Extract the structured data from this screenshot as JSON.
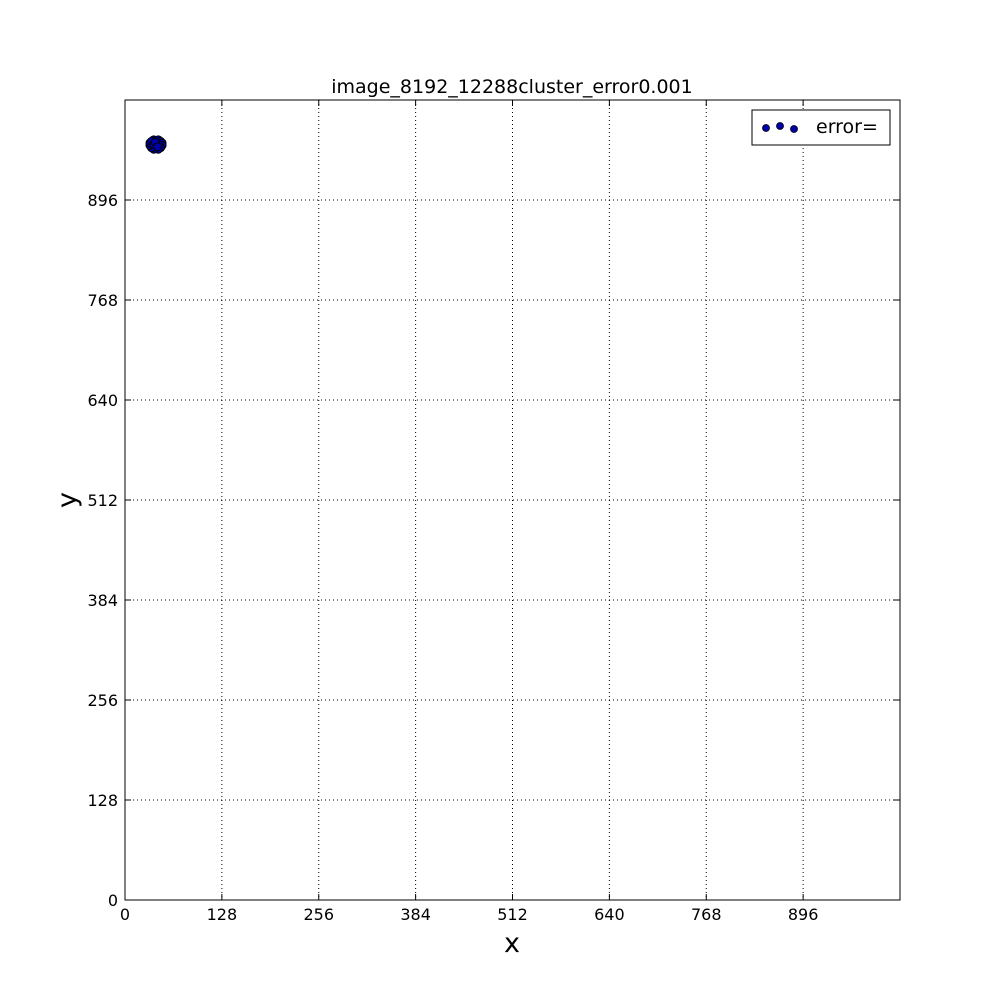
{
  "chart_data": {
    "type": "scatter",
    "title": "image_8192_12288cluster_error0.001",
    "xlabel": "x",
    "ylabel": "y",
    "xlim": [
      0,
      1024
    ],
    "ylim": [
      0,
      1024
    ],
    "xticks": [
      0,
      128,
      256,
      384,
      512,
      640,
      768,
      896
    ],
    "yticks": [
      0,
      128,
      256,
      384,
      512,
      640,
      768,
      896
    ],
    "grid": true,
    "legend_position": "top-right",
    "series": [
      {
        "name": "error=",
        "color": "#0000aa",
        "points": [
          [
            38,
            973
          ],
          [
            44,
            973
          ],
          [
            47,
            971
          ],
          [
            49,
            969
          ],
          [
            49,
            966
          ],
          [
            47,
            963
          ],
          [
            44,
            961
          ],
          [
            38,
            961
          ],
          [
            35,
            963
          ],
          [
            33,
            966
          ],
          [
            33,
            969
          ],
          [
            35,
            971
          ],
          [
            41,
            967
          ],
          [
            38,
            967
          ],
          [
            44,
            967
          ],
          [
            40,
            970
          ],
          [
            43,
            964
          ]
        ]
      }
    ]
  }
}
